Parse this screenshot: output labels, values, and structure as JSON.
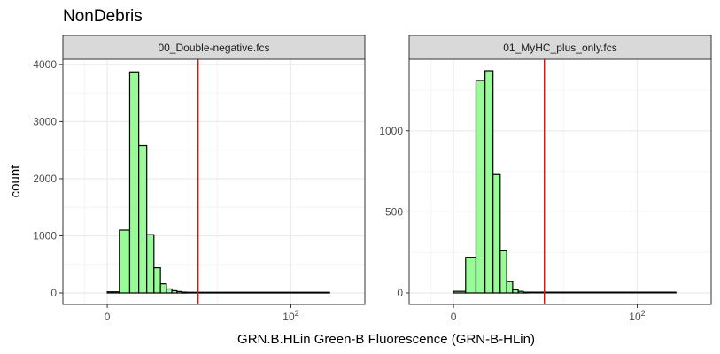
{
  "title": "NonDebris",
  "xlabel": "GRN.B.HLin Green-B Fluorescence (GRN-B-HLin)",
  "ylabel": "count",
  "colors": {
    "bar_fill": "#98fb98",
    "bar_stroke": "#000000",
    "vline": "#ff0000",
    "strip": "#d9d9d9",
    "grid": "#ebebeb",
    "panel_border": "#333333"
  },
  "chart_data": [
    {
      "type": "bar",
      "panel": "00_Double-negative.fcs",
      "x_ticks": [
        {
          "value": 0,
          "label": "0"
        },
        {
          "value": 100,
          "label": "10",
          "exp": "2"
        }
      ],
      "y_ticks": [
        0,
        1000,
        2000,
        3000,
        4000
      ],
      "ylim": [
        0,
        4060
      ],
      "vline_x": 21,
      "bins_x": [
        0,
        1.5,
        3,
        4.5,
        6,
        7.5,
        9,
        10.5,
        12,
        13.5,
        15
      ],
      "counts": [
        20,
        1100,
        3870,
        2580,
        1020,
        440,
        160,
        70,
        40,
        25,
        15
      ],
      "tail_x": [
        15,
        180
      ],
      "tail_count": 5
    },
    {
      "type": "bar",
      "panel": "01_MyHC_plus_only.fcs",
      "x_ticks": [
        {
          "value": 0,
          "label": "0"
        },
        {
          "value": 100,
          "label": "10",
          "exp": "2"
        }
      ],
      "y_ticks": [
        0,
        500,
        1000
      ],
      "ylim": [
        0,
        1430
      ],
      "vline_x": 21,
      "bins_x": [
        0,
        1.5,
        3,
        4.5,
        6,
        7.5,
        9,
        10.5,
        12,
        13.5
      ],
      "counts": [
        10,
        220,
        1310,
        1370,
        730,
        260,
        70,
        20,
        10,
        5
      ],
      "tail_x": [
        13.5,
        180
      ],
      "tail_count": 3
    }
  ]
}
